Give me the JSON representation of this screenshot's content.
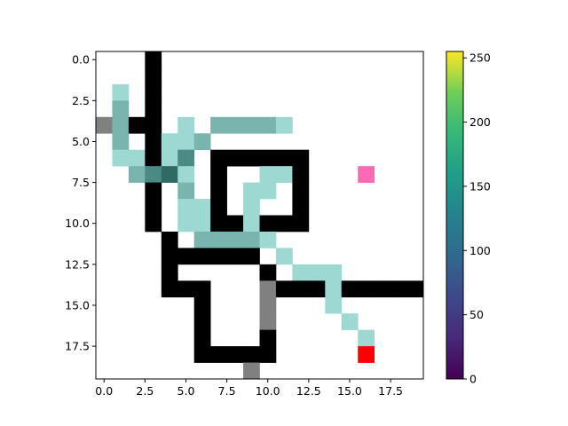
{
  "chart_data": {
    "type": "heatmap",
    "title": "",
    "xlabel": "",
    "ylabel": "",
    "rows": 20,
    "cols": 20,
    "xlim": [
      -0.5,
      19.5
    ],
    "ylim": [
      19.5,
      -0.5
    ],
    "x_ticks": [
      0.0,
      2.5,
      5.0,
      7.5,
      10.0,
      12.5,
      15.0,
      17.5
    ],
    "x_tick_labels": [
      "0.0",
      "2.5",
      "5.0",
      "7.5",
      "10.0",
      "12.5",
      "15.0",
      "17.5"
    ],
    "y_ticks": [
      0.0,
      2.5,
      5.0,
      7.5,
      10.0,
      12.5,
      15.0,
      17.5
    ],
    "y_tick_labels": [
      "0.0",
      "2.5",
      "5.0",
      "7.5",
      "10.0",
      "12.5",
      "15.0",
      "17.5"
    ],
    "grid": false,
    "legend": "none",
    "palette": {
      "wall": "#000000",
      "gray": "#808080",
      "path_light": "#9dd8d2",
      "path_mid": "#79b4ae",
      "path_dark": "#4b8a85",
      "path_darkest": "#2f6a65",
      "pink": "#ff69b4",
      "red": "#ff0000"
    },
    "cells": [
      {
        "r": 0,
        "c": 3,
        "k": "wall"
      },
      {
        "r": 1,
        "c": 3,
        "k": "wall"
      },
      {
        "r": 2,
        "c": 1,
        "k": "path_light"
      },
      {
        "r": 2,
        "c": 3,
        "k": "wall"
      },
      {
        "r": 3,
        "c": 1,
        "k": "path_mid"
      },
      {
        "r": 3,
        "c": 3,
        "k": "wall"
      },
      {
        "r": 4,
        "c": 0,
        "k": "gray"
      },
      {
        "r": 4,
        "c": 1,
        "k": "path_mid"
      },
      {
        "r": 4,
        "c": 2,
        "k": "wall"
      },
      {
        "r": 4,
        "c": 3,
        "k": "wall"
      },
      {
        "r": 4,
        "c": 5,
        "k": "path_light"
      },
      {
        "r": 4,
        "c": 7,
        "k": "path_mid"
      },
      {
        "r": 4,
        "c": 8,
        "k": "path_mid"
      },
      {
        "r": 4,
        "c": 9,
        "k": "path_mid"
      },
      {
        "r": 4,
        "c": 10,
        "k": "path_mid"
      },
      {
        "r": 4,
        "c": 11,
        "k": "path_light"
      },
      {
        "r": 5,
        "c": 1,
        "k": "path_mid"
      },
      {
        "r": 5,
        "c": 3,
        "k": "wall"
      },
      {
        "r": 5,
        "c": 4,
        "k": "path_light"
      },
      {
        "r": 5,
        "c": 5,
        "k": "path_light"
      },
      {
        "r": 5,
        "c": 6,
        "k": "path_mid"
      },
      {
        "r": 6,
        "c": 1,
        "k": "path_light"
      },
      {
        "r": 6,
        "c": 2,
        "k": "path_light"
      },
      {
        "r": 6,
        "c": 3,
        "k": "wall"
      },
      {
        "r": 6,
        "c": 4,
        "k": "path_light"
      },
      {
        "r": 6,
        "c": 5,
        "k": "path_dark"
      },
      {
        "r": 6,
        "c": 7,
        "k": "wall"
      },
      {
        "r": 6,
        "c": 8,
        "k": "wall"
      },
      {
        "r": 6,
        "c": 9,
        "k": "wall"
      },
      {
        "r": 6,
        "c": 10,
        "k": "wall"
      },
      {
        "r": 6,
        "c": 11,
        "k": "wall"
      },
      {
        "r": 6,
        "c": 12,
        "k": "wall"
      },
      {
        "r": 7,
        "c": 2,
        "k": "path_mid"
      },
      {
        "r": 7,
        "c": 3,
        "k": "path_dark"
      },
      {
        "r": 7,
        "c": 4,
        "k": "path_darkest"
      },
      {
        "r": 7,
        "c": 5,
        "k": "path_light"
      },
      {
        "r": 7,
        "c": 7,
        "k": "wall"
      },
      {
        "r": 7,
        "c": 10,
        "k": "path_light"
      },
      {
        "r": 7,
        "c": 11,
        "k": "path_light"
      },
      {
        "r": 7,
        "c": 12,
        "k": "wall"
      },
      {
        "r": 7,
        "c": 16,
        "k": "pink"
      },
      {
        "r": 8,
        "c": 3,
        "k": "wall"
      },
      {
        "r": 8,
        "c": 5,
        "k": "path_mid"
      },
      {
        "r": 8,
        "c": 7,
        "k": "wall"
      },
      {
        "r": 8,
        "c": 9,
        "k": "path_light"
      },
      {
        "r": 8,
        "c": 10,
        "k": "path_light"
      },
      {
        "r": 8,
        "c": 12,
        "k": "wall"
      },
      {
        "r": 9,
        "c": 3,
        "k": "wall"
      },
      {
        "r": 9,
        "c": 5,
        "k": "path_light"
      },
      {
        "r": 9,
        "c": 6,
        "k": "path_light"
      },
      {
        "r": 9,
        "c": 7,
        "k": "wall"
      },
      {
        "r": 9,
        "c": 9,
        "k": "path_light"
      },
      {
        "r": 9,
        "c": 12,
        "k": "wall"
      },
      {
        "r": 10,
        "c": 3,
        "k": "wall"
      },
      {
        "r": 10,
        "c": 5,
        "k": "path_light"
      },
      {
        "r": 10,
        "c": 6,
        "k": "path_light"
      },
      {
        "r": 10,
        "c": 7,
        "k": "wall"
      },
      {
        "r": 10,
        "c": 8,
        "k": "wall"
      },
      {
        "r": 10,
        "c": 9,
        "k": "path_light"
      },
      {
        "r": 10,
        "c": 10,
        "k": "wall"
      },
      {
        "r": 10,
        "c": 11,
        "k": "wall"
      },
      {
        "r": 10,
        "c": 12,
        "k": "wall"
      },
      {
        "r": 11,
        "c": 4,
        "k": "wall"
      },
      {
        "r": 11,
        "c": 6,
        "k": "path_mid"
      },
      {
        "r": 11,
        "c": 7,
        "k": "path_mid"
      },
      {
        "r": 11,
        "c": 8,
        "k": "path_mid"
      },
      {
        "r": 11,
        "c": 9,
        "k": "path_mid"
      },
      {
        "r": 11,
        "c": 10,
        "k": "path_light"
      },
      {
        "r": 12,
        "c": 4,
        "k": "wall"
      },
      {
        "r": 12,
        "c": 5,
        "k": "wall"
      },
      {
        "r": 12,
        "c": 6,
        "k": "wall"
      },
      {
        "r": 12,
        "c": 7,
        "k": "wall"
      },
      {
        "r": 12,
        "c": 8,
        "k": "wall"
      },
      {
        "r": 12,
        "c": 9,
        "k": "wall"
      },
      {
        "r": 12,
        "c": 11,
        "k": "path_light"
      },
      {
        "r": 13,
        "c": 4,
        "k": "wall"
      },
      {
        "r": 13,
        "c": 10,
        "k": "wall"
      },
      {
        "r": 13,
        "c": 12,
        "k": "path_light"
      },
      {
        "r": 13,
        "c": 13,
        "k": "path_light"
      },
      {
        "r": 13,
        "c": 14,
        "k": "path_light"
      },
      {
        "r": 14,
        "c": 4,
        "k": "wall"
      },
      {
        "r": 14,
        "c": 5,
        "k": "wall"
      },
      {
        "r": 14,
        "c": 6,
        "k": "wall"
      },
      {
        "r": 14,
        "c": 10,
        "k": "gray"
      },
      {
        "r": 14,
        "c": 11,
        "k": "wall"
      },
      {
        "r": 14,
        "c": 12,
        "k": "wall"
      },
      {
        "r": 14,
        "c": 13,
        "k": "wall"
      },
      {
        "r": 14,
        "c": 14,
        "k": "path_light"
      },
      {
        "r": 14,
        "c": 15,
        "k": "wall"
      },
      {
        "r": 14,
        "c": 16,
        "k": "wall"
      },
      {
        "r": 14,
        "c": 17,
        "k": "wall"
      },
      {
        "r": 14,
        "c": 18,
        "k": "wall"
      },
      {
        "r": 14,
        "c": 19,
        "k": "wall"
      },
      {
        "r": 15,
        "c": 6,
        "k": "wall"
      },
      {
        "r": 15,
        "c": 10,
        "k": "gray"
      },
      {
        "r": 15,
        "c": 14,
        "k": "path_light"
      },
      {
        "r": 16,
        "c": 6,
        "k": "wall"
      },
      {
        "r": 16,
        "c": 10,
        "k": "gray"
      },
      {
        "r": 16,
        "c": 15,
        "k": "path_light"
      },
      {
        "r": 17,
        "c": 6,
        "k": "wall"
      },
      {
        "r": 17,
        "c": 10,
        "k": "wall"
      },
      {
        "r": 17,
        "c": 16,
        "k": "path_light"
      },
      {
        "r": 18,
        "c": 6,
        "k": "wall"
      },
      {
        "r": 18,
        "c": 7,
        "k": "wall"
      },
      {
        "r": 18,
        "c": 8,
        "k": "wall"
      },
      {
        "r": 18,
        "c": 9,
        "k": "wall"
      },
      {
        "r": 18,
        "c": 10,
        "k": "wall"
      },
      {
        "r": 18,
        "c": 16,
        "k": "red"
      },
      {
        "r": 19,
        "c": 9,
        "k": "gray"
      }
    ],
    "colorbar": {
      "colormap": "viridis",
      "range": [
        0,
        255
      ],
      "ticks": [
        0,
        50,
        100,
        150,
        200,
        250
      ],
      "tick_labels": [
        "0",
        "50",
        "100",
        "150",
        "200",
        "250"
      ]
    }
  }
}
